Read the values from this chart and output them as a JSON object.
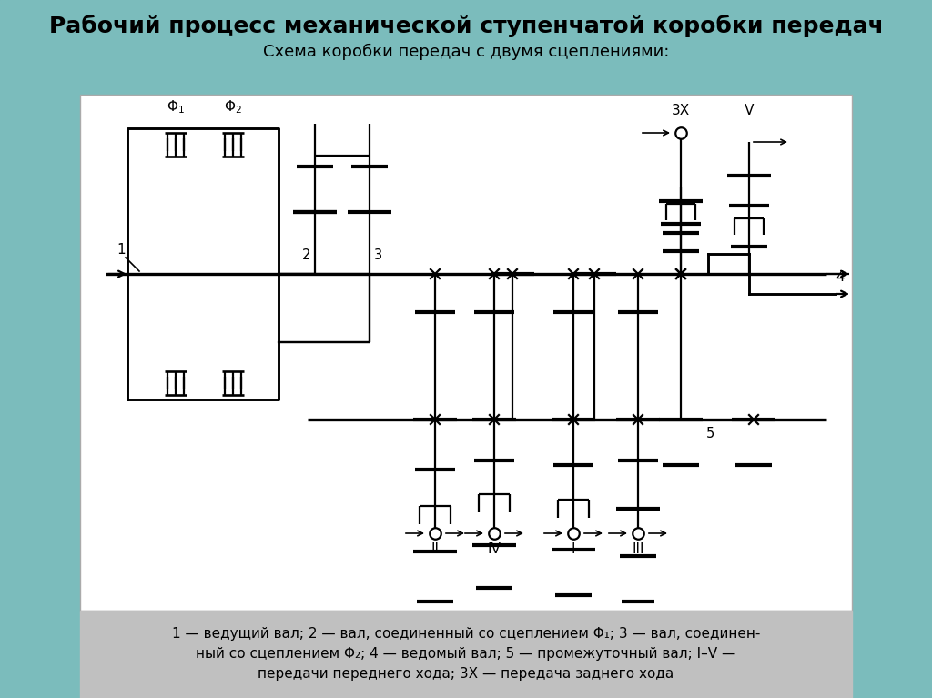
{
  "title1": "Рабочий процесс механической ступенчатой коробки передач",
  "title2": "Схема коробки передач с двумя сцеплениями:",
  "caption_line1": "1 — ведущий вал; 2 — вал, соединенный со сцеплением Φ₁; 3 — вал, соединен-",
  "caption_line2": "ный со сцеплением Φ₂; 4 — ведомый вал; 5 — промежуточный вал; I–V —",
  "caption_line3": "передачи переднего хода; 3Х — передача заднего хода",
  "bg_teal": "#6ab8b8",
  "bg_white": "#ffffff",
  "bg_gray": "#c8c8c8",
  "lw": 1.6
}
